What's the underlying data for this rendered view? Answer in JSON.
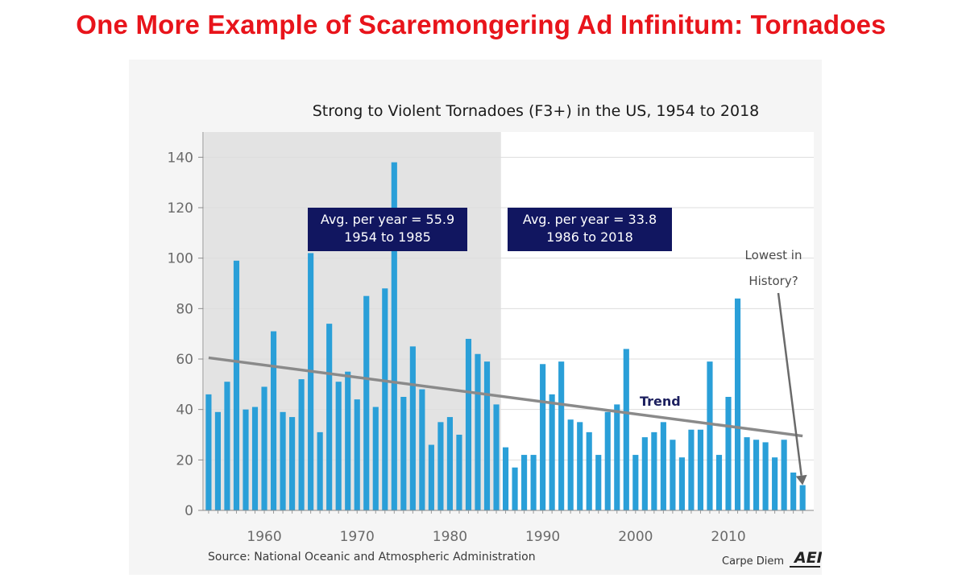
{
  "slide": {
    "title": "One More Example of Scaremongering Ad Infinitum:  Tornadoes"
  },
  "chart_data": {
    "type": "bar",
    "title": "Strong to Violent Tornadoes (F3+) in the US, 1954 to 2018",
    "source": "Source: National Oceanic and Atmospheric Administration",
    "brand": "Carpe Diem",
    "logo": "AEI",
    "x": [
      1954,
      1955,
      1956,
      1957,
      1958,
      1959,
      1960,
      1961,
      1962,
      1963,
      1964,
      1965,
      1966,
      1967,
      1968,
      1969,
      1970,
      1971,
      1972,
      1973,
      1974,
      1975,
      1976,
      1977,
      1978,
      1979,
      1980,
      1981,
      1982,
      1983,
      1984,
      1985,
      1986,
      1987,
      1988,
      1989,
      1990,
      1991,
      1992,
      1993,
      1994,
      1995,
      1996,
      1997,
      1998,
      1999,
      2000,
      2001,
      2002,
      2003,
      2004,
      2005,
      2006,
      2007,
      2008,
      2009,
      2010,
      2011,
      2012,
      2013,
      2014,
      2015,
      2016,
      2017,
      2018
    ],
    "values": [
      46,
      39,
      51,
      99,
      40,
      41,
      49,
      71,
      39,
      37,
      52,
      102,
      31,
      74,
      51,
      55,
      44,
      85,
      41,
      88,
      138,
      45,
      65,
      48,
      26,
      35,
      37,
      30,
      68,
      62,
      59,
      42,
      25,
      17,
      22,
      22,
      58,
      46,
      59,
      36,
      35,
      31,
      22,
      39,
      42,
      64,
      22,
      29,
      31,
      35,
      28,
      21,
      32,
      32,
      59,
      22,
      45,
      84,
      29,
      28,
      27,
      21,
      28,
      15,
      10
    ],
    "xticks": [
      1960,
      1970,
      1980,
      1990,
      2000,
      2010
    ],
    "yticks": [
      0,
      20,
      40,
      60,
      80,
      100,
      120,
      140
    ],
    "ylim": [
      0,
      150
    ],
    "xlim": [
      1953.4,
      2019.2
    ],
    "grid": true,
    "bar_color": "#2a9fd8",
    "shaded_period": [
      1954,
      1985
    ],
    "shade_color": "#e3e3e3",
    "trend": {
      "label": "Trend",
      "start": [
        1954,
        60.5
      ],
      "end": [
        2018,
        29.5
      ],
      "color": "#8a8a8a"
    },
    "annotation_box_color": "#111660",
    "annotations": [
      {
        "line1": "Avg. per year = 55.9",
        "line2": "1954 to 1985"
      },
      {
        "line1": "Avg. per year = 33.8",
        "line2": "1986 to 2018"
      }
    ],
    "callout": {
      "line1": "Lowest in",
      "line2": "History?",
      "target_year": 2018,
      "target_value": 10
    }
  }
}
